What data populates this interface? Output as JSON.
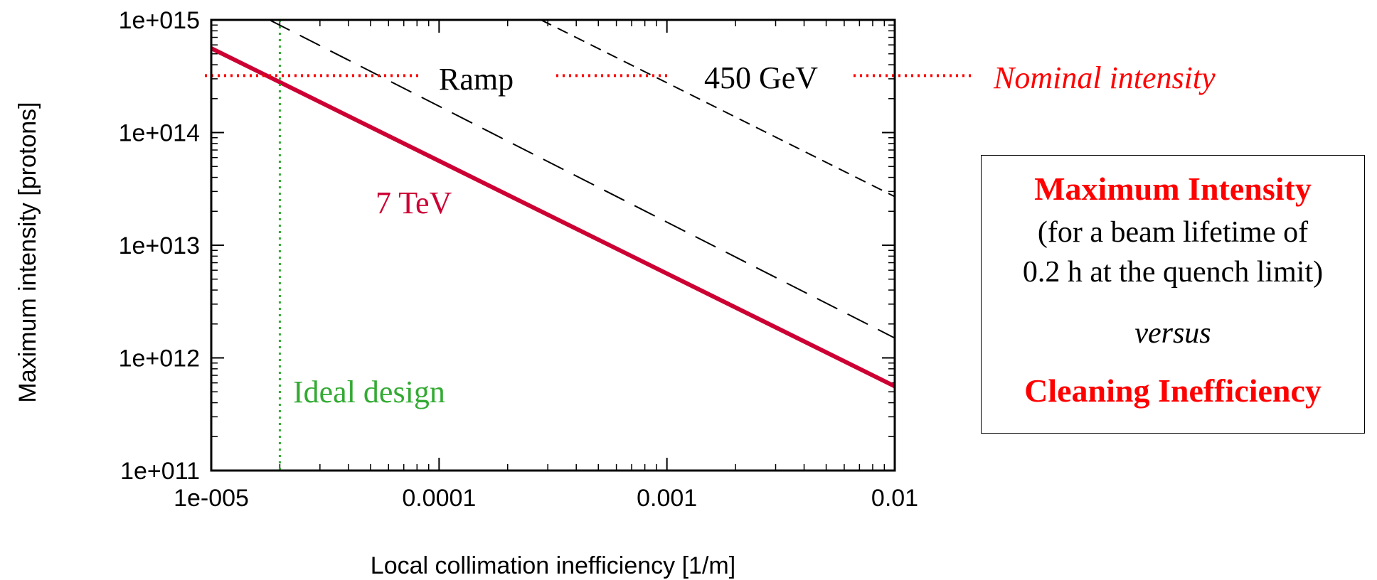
{
  "chart_data": {
    "type": "line",
    "xlabel": "Local collimation inefficiency [1/m]",
    "ylabel": "Maximum intensity [protons]",
    "x_scale": "log",
    "y_scale": "log",
    "xlim": [
      1e-05,
      0.01
    ],
    "ylim": [
      100000000000.0,
      1000000000000000.0
    ],
    "x_ticks": [
      "1e-005",
      "0.0001",
      "0.001",
      "0.01"
    ],
    "y_ticks": [
      "1e+011",
      "1e+012",
      "1e+013",
      "1e+014",
      "1e+015"
    ],
    "grid": false,
    "series": [
      {
        "name": "7 TeV",
        "style": "solid",
        "color": "#cc0033",
        "x": [
          1e-05,
          0.01
        ],
        "y": [
          560000000000000.0,
          560000000000.0
        ]
      },
      {
        "name": "Ramp",
        "style": "long-dash",
        "color": "#000000",
        "x": [
          1.8e-05,
          0.01
        ],
        "y": [
          1000000000000000.0,
          1500000000000.0
        ]
      },
      {
        "name": "450 GeV",
        "style": "short-dash",
        "color": "#000000",
        "x": [
          0.00028,
          0.01
        ],
        "y": [
          1000000000000000.0,
          27000000000000.0
        ]
      }
    ],
    "reference_lines": [
      {
        "orientation": "horizontal",
        "label": "Nominal intensity",
        "value": 320000000000000.0,
        "style": "dotted",
        "color": "#ff0000"
      },
      {
        "orientation": "vertical",
        "label": "Ideal design",
        "value": 2e-05,
        "style": "dotted",
        "color": "#33aa33"
      }
    ],
    "annotations": {
      "ramp": "Ramp",
      "gev450": "450 GeV",
      "nominal": "Nominal intensity",
      "tev7": "7 TeV",
      "ideal": "Ideal design"
    }
  },
  "info_box": {
    "title": "Maximum Intensity",
    "sub1": "(for a beam lifetime of",
    "sub2": "0.2 h at the quench limit)",
    "versus": "versus",
    "bottom": "Cleaning Inefficiency"
  }
}
